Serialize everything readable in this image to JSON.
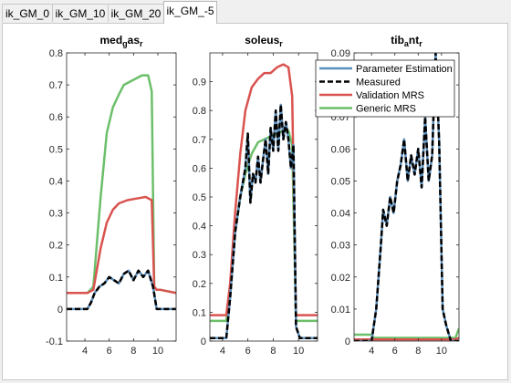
{
  "tabs": [
    {
      "label": "ik_GM_0",
      "active": false
    },
    {
      "label": "ik_GM_10",
      "active": false
    },
    {
      "label": "ik_GM_20",
      "active": false
    },
    {
      "label": "ik_GM_-5",
      "active": true
    }
  ],
  "legend": {
    "items": [
      {
        "label": "Parameter Estimation",
        "color": "#5b8fbc",
        "style": "solid"
      },
      {
        "label": "Measured",
        "color": "#000000",
        "style": "dashed"
      },
      {
        "label": "Validation MRS",
        "color": "#d9534f",
        "style": "solid"
      },
      {
        "label": "Generic MRS",
        "color": "#6cbf6a",
        "style": "solid"
      }
    ]
  },
  "chart_data": [
    {
      "type": "line",
      "title": "med_g as_r",
      "title_parts": {
        "main": "med",
        "sub1": "g",
        "mid": "as",
        "sub2": "r"
      },
      "xlim": [
        2.5,
        11.5
      ],
      "ylim": [
        -0.1,
        0.8
      ],
      "xticks": [
        4,
        6,
        8,
        10
      ],
      "yticks": [
        -0.1,
        0,
        0.1,
        0.2,
        0.3,
        0.4,
        0.5,
        0.6,
        0.7,
        0.8
      ],
      "ytick_labels": [
        "-0.1",
        "0",
        "0.1",
        "0.2",
        "0.3",
        "0.4",
        "0.5",
        "0.6",
        "0.7",
        "0.8"
      ],
      "series": [
        {
          "name": "Generic MRS",
          "x": [
            2.5,
            4.2,
            4.7,
            5.3,
            5.8,
            6.3,
            6.8,
            7.2,
            7.7,
            8.2,
            8.7,
            9.2,
            9.5,
            9.7,
            9.9,
            10.2,
            11.5
          ],
          "y": [
            0.05,
            0.05,
            0.07,
            0.35,
            0.55,
            0.63,
            0.67,
            0.7,
            0.71,
            0.72,
            0.73,
            0.73,
            0.68,
            0.07,
            0.06,
            0.06,
            0.05
          ]
        },
        {
          "name": "Validation MRS",
          "x": [
            2.5,
            4.2,
            4.7,
            5.3,
            5.8,
            6.3,
            6.8,
            7.5,
            8.2,
            9.0,
            9.5,
            9.7,
            9.9,
            10.2,
            11.5
          ],
          "y": [
            0.05,
            0.05,
            0.06,
            0.19,
            0.27,
            0.31,
            0.33,
            0.34,
            0.345,
            0.35,
            0.34,
            0.07,
            0.06,
            0.06,
            0.05
          ]
        },
        {
          "name": "Parameter Estimation",
          "x": [
            2.5,
            4.2,
            4.5,
            4.8,
            5.2,
            5.6,
            6.0,
            6.4,
            6.8,
            7.2,
            7.6,
            8.0,
            8.4,
            8.8,
            9.2,
            9.6,
            9.9,
            10.2,
            11.5
          ],
          "y": [
            0.0,
            0.0,
            0.02,
            0.05,
            0.07,
            0.08,
            0.1,
            0.09,
            0.08,
            0.11,
            0.12,
            0.09,
            0.12,
            0.1,
            0.12,
            0.07,
            0.0,
            0.0,
            0.0
          ]
        },
        {
          "name": "Measured",
          "x": [
            2.5,
            4.2,
            4.5,
            4.8,
            5.2,
            5.6,
            6.0,
            6.4,
            6.8,
            7.2,
            7.6,
            8.0,
            8.4,
            8.8,
            9.2,
            9.6,
            9.9,
            10.2,
            11.5
          ],
          "y": [
            0.0,
            0.0,
            0.02,
            0.05,
            0.07,
            0.08,
            0.1,
            0.09,
            0.08,
            0.11,
            0.12,
            0.09,
            0.12,
            0.1,
            0.12,
            0.07,
            0.0,
            0.0,
            0.0
          ]
        }
      ]
    },
    {
      "type": "line",
      "title": "soleus_r",
      "title_parts": {
        "main": "soleus",
        "sub1": "r",
        "mid": "",
        "sub2": ""
      },
      "xlim": [
        3,
        11.5
      ],
      "ylim": [
        0,
        1.0
      ],
      "xticks": [
        4,
        6,
        8,
        10
      ],
      "yticks": [
        0,
        0.1,
        0.2,
        0.3,
        0.4,
        0.5,
        0.6,
        0.7,
        0.8,
        0.9
      ],
      "ytick_labels": [
        "0",
        "0.1",
        "0.2",
        "0.3",
        "0.4",
        "0.5",
        "0.6",
        "0.7",
        "0.8",
        "0.9"
      ],
      "series": [
        {
          "name": "Validation MRS",
          "x": [
            3,
            4.3,
            4.6,
            5.0,
            5.4,
            5.8,
            6.3,
            6.8,
            7.3,
            7.8,
            8.3,
            8.8,
            9.2,
            9.5,
            9.8,
            10.1,
            11.5
          ],
          "y": [
            0.09,
            0.09,
            0.2,
            0.45,
            0.65,
            0.8,
            0.88,
            0.91,
            0.93,
            0.93,
            0.95,
            0.96,
            0.95,
            0.85,
            0.09,
            0.09,
            0.09
          ]
        },
        {
          "name": "Generic MRS",
          "x": [
            3,
            4.3,
            4.6,
            5.0,
            5.4,
            5.8,
            6.3,
            6.8,
            7.3,
            7.8,
            8.3,
            8.8,
            9.2,
            9.5,
            9.8,
            10.1,
            11.5
          ],
          "y": [
            0.07,
            0.07,
            0.18,
            0.38,
            0.5,
            0.58,
            0.65,
            0.69,
            0.7,
            0.71,
            0.72,
            0.73,
            0.73,
            0.68,
            0.07,
            0.07,
            0.07
          ]
        },
        {
          "name": "Parameter Estimation",
          "x": [
            3,
            4.3,
            4.6,
            5.0,
            5.4,
            5.8,
            6.0,
            6.2,
            6.4,
            6.6,
            6.8,
            7.0,
            7.2,
            7.4,
            7.6,
            7.8,
            8.0,
            8.2,
            8.4,
            8.6,
            8.8,
            9.0,
            9.2,
            9.4,
            9.6,
            9.8,
            10.1,
            11.5
          ],
          "y": [
            0.01,
            0.01,
            0.15,
            0.38,
            0.5,
            0.6,
            0.72,
            0.48,
            0.58,
            0.55,
            0.64,
            0.55,
            0.63,
            0.7,
            0.58,
            0.74,
            0.66,
            0.8,
            0.66,
            0.82,
            0.7,
            0.76,
            0.7,
            0.6,
            0.68,
            0.05,
            0.01,
            0.01
          ]
        },
        {
          "name": "Measured",
          "x": [
            3,
            4.3,
            4.6,
            5.0,
            5.4,
            5.8,
            6.0,
            6.2,
            6.4,
            6.6,
            6.8,
            7.0,
            7.2,
            7.4,
            7.6,
            7.8,
            8.0,
            8.2,
            8.4,
            8.6,
            8.8,
            9.0,
            9.2,
            9.4,
            9.6,
            9.8,
            10.1,
            11.5
          ],
          "y": [
            0.01,
            0.01,
            0.15,
            0.38,
            0.5,
            0.6,
            0.72,
            0.48,
            0.58,
            0.55,
            0.64,
            0.55,
            0.63,
            0.7,
            0.58,
            0.74,
            0.66,
            0.8,
            0.66,
            0.82,
            0.7,
            0.76,
            0.7,
            0.6,
            0.68,
            0.05,
            0.01,
            0.01
          ]
        }
      ]
    },
    {
      "type": "line",
      "title": "tib_a nt_r",
      "title_parts": {
        "main": "tib",
        "sub1": "a",
        "mid": "nt",
        "sub2": "r"
      },
      "xlim": [
        2.5,
        11.5
      ],
      "ylim": [
        0,
        0.09
      ],
      "xticks": [
        4,
        6,
        8,
        10
      ],
      "yticks": [
        0,
        0.01,
        0.02,
        0.03,
        0.04,
        0.05,
        0.06,
        0.07,
        0.08,
        0.09
      ],
      "ytick_labels": [
        "0",
        "0.01",
        "0.02",
        "0.03",
        "0.04",
        "0.05",
        "0.06",
        "0.07",
        "0.08",
        "0.09"
      ],
      "series": [
        {
          "name": "Validation MRS",
          "x": [
            2.5,
            11.2,
            11.5
          ],
          "y": [
            0.0005,
            0.0005,
            0.001
          ]
        },
        {
          "name": "Generic MRS",
          "x": [
            2.5,
            4.0,
            4.2,
            10.8,
            11.2,
            11.5
          ],
          "y": [
            0.002,
            0.002,
            0.001,
            0.001,
            0.001,
            0.004
          ]
        },
        {
          "name": "Parameter Estimation",
          "x": [
            2.5,
            4.0,
            4.4,
            4.8,
            5.0,
            5.3,
            5.6,
            5.9,
            6.2,
            6.5,
            6.8,
            7.1,
            7.4,
            7.7,
            8.0,
            8.3,
            8.6,
            8.9,
            9.2,
            9.5,
            9.8,
            10.1,
            10.4,
            10.8,
            11.5
          ],
          "y": [
            0.0,
            0.0,
            0.01,
            0.03,
            0.041,
            0.036,
            0.045,
            0.04,
            0.05,
            0.055,
            0.063,
            0.05,
            0.058,
            0.052,
            0.06,
            0.048,
            0.07,
            0.05,
            0.058,
            0.09,
            0.062,
            0.01,
            0.005,
            0.0,
            0.0
          ]
        },
        {
          "name": "Measured",
          "x": [
            2.5,
            4.0,
            4.4,
            4.8,
            5.0,
            5.3,
            5.6,
            5.9,
            6.2,
            6.5,
            6.8,
            7.1,
            7.4,
            7.7,
            8.0,
            8.3,
            8.6,
            8.9,
            9.2,
            9.5,
            9.8,
            10.1,
            10.4,
            10.8,
            11.5
          ],
          "y": [
            0.0,
            0.0,
            0.01,
            0.03,
            0.041,
            0.036,
            0.045,
            0.04,
            0.05,
            0.055,
            0.063,
            0.05,
            0.058,
            0.052,
            0.06,
            0.048,
            0.07,
            0.05,
            0.058,
            0.09,
            0.062,
            0.01,
            0.005,
            0.0,
            0.0
          ]
        }
      ]
    }
  ]
}
